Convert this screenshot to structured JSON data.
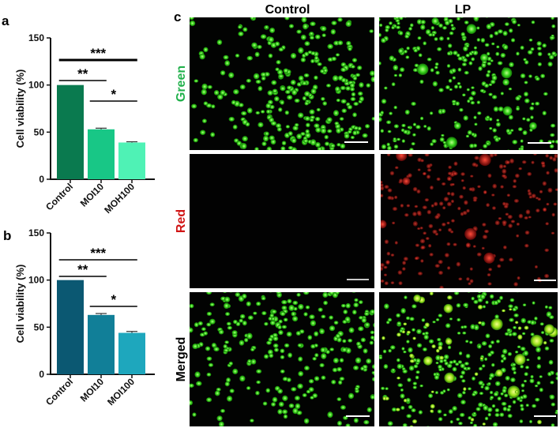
{
  "panels": {
    "a": "a",
    "b": "b",
    "c": "c"
  },
  "chart_data": [
    {
      "type": "bar",
      "categories": [
        "Control",
        "MOI10",
        "MOH100"
      ],
      "values": [
        100,
        53,
        39
      ],
      "errors": [
        0,
        1.2,
        0.8
      ],
      "ylabel": "Cell viability (%)",
      "ylim": [
        0,
        150
      ],
      "yticks": [
        "0",
        "50",
        "100",
        "150"
      ],
      "colors": [
        "#0a7a4f",
        "#18c786",
        "#4ff2b5"
      ],
      "significance": [
        {
          "from": 0,
          "to": 2,
          "label": "***"
        },
        {
          "from": 0,
          "to": 1,
          "label": "**"
        },
        {
          "from": 1,
          "to": 2,
          "label": "*"
        }
      ]
    },
    {
      "type": "bar",
      "categories": [
        "Control",
        "MOI10",
        "MOI100"
      ],
      "values": [
        100,
        63,
        44
      ],
      "errors": [
        0,
        1.5,
        1.5
      ],
      "ylabel": "Cell viability (%)",
      "ylim": [
        0,
        150
      ],
      "yticks": [
        "0",
        "50",
        "100",
        "150"
      ],
      "colors": [
        "#0b5872",
        "#117f98",
        "#1ea7bd"
      ],
      "significance": [
        {
          "from": 0,
          "to": 2,
          "label": "***"
        },
        {
          "from": 0,
          "to": 1,
          "label": "**"
        },
        {
          "from": 1,
          "to": 2,
          "label": "*"
        }
      ]
    }
  ],
  "microscopy": {
    "columns": [
      "Control",
      "LP"
    ],
    "rows": [
      {
        "label": "Green",
        "color": "#22b14c"
      },
      {
        "label": "Red",
        "color": "#d01414"
      },
      {
        "label": "Merged",
        "color": "#000000"
      }
    ]
  }
}
